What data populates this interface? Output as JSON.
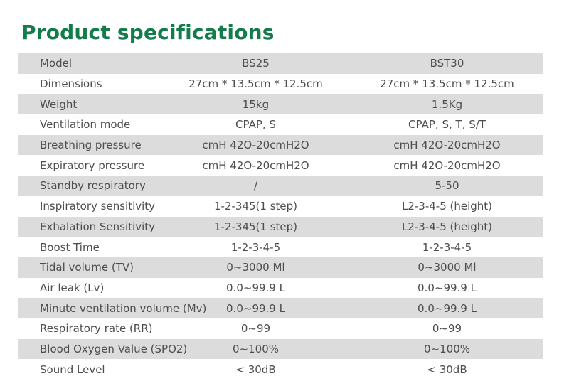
{
  "page": {
    "title": "Product specifications"
  },
  "colors": {
    "title_green": "#127c4a",
    "row_gray": "#dcdcdc",
    "text": "#4d4d4d",
    "background": "#ffffff"
  },
  "table": {
    "rows": [
      {
        "label": "Model",
        "bs25": "BS25",
        "bst30": "BST30"
      },
      {
        "label": "Dimensions",
        "bs25": "27cm * 13.5cm * 12.5cm",
        "bst30": "27cm * 13.5cm * 12.5cm"
      },
      {
        "label": "Weight",
        "bs25": "15kg",
        "bst30": "1.5Kg"
      },
      {
        "label": "Ventilation mode",
        "bs25": "CPAP,  S",
        "bst30": "CPAP,  S,  T,  S/T"
      },
      {
        "label": "Breathing pressure",
        "bs25": "cmH 42O-20cmH2O",
        "bst30": "cmH 42O-20cmH2O"
      },
      {
        "label": "Expiratory pressure",
        "bs25": "cmH 42O-20cmH2O",
        "bst30": "cmH 42O-20cmH2O"
      },
      {
        "label": "Standby respiratory",
        "bs25": "/",
        "bst30": "5-50"
      },
      {
        "label": "Inspiratory sensitivity",
        "bs25": "1-2-345(1 step)",
        "bst30": "L2-3-4-5 (height)"
      },
      {
        "label": "Exhalation Sensitivity",
        "bs25": "1-2-345(1 step)",
        "bst30": "L2-3-4-5 (height)"
      },
      {
        "label": "Boost Time",
        "bs25": "1-2-3-4-5",
        "bst30": "1-2-3-4-5"
      },
      {
        "label": "Tidal volume  (TV)",
        "bs25": "0~3000 Ml",
        "bst30": "0~3000 Ml"
      },
      {
        "label": "Air leak (Lv)",
        "bs25": "0.0~99.9 L",
        "bst30": "0.0~99.9 L"
      },
      {
        "label": "Minute ventilation volume (Mv)",
        "bs25": "0.0~99.9 L",
        "bst30": "0.0~99.9 L"
      },
      {
        "label": "Respiratory rate (RR)",
        "bs25": "0~99",
        "bst30": "0~99"
      },
      {
        "label": "Blood Oxygen Value (SPO2)",
        "bs25": "0~100%",
        "bst30": "0~100%"
      },
      {
        "label": "Sound Level",
        "bs25": "< 30dB",
        "bst30": "< 30dB"
      }
    ]
  }
}
